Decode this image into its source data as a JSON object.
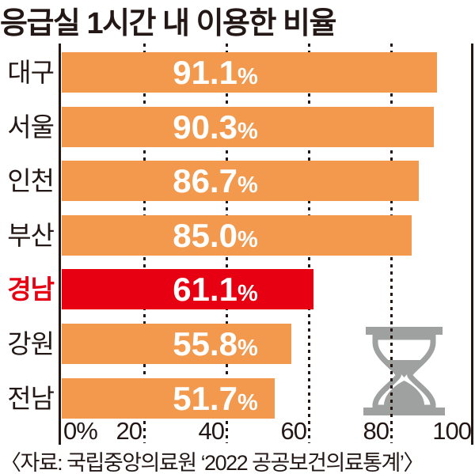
{
  "title": "응급실 1시간 내 이용한 비율",
  "source": "〈자료: 국립중앙의료원 ‘2022 공공보건의료통계’〉",
  "colors": {
    "bar": "#F2994E",
    "highlight": "#E60012",
    "text": "#231815",
    "value_text": "#FFFFFF",
    "icon_gray": "#9FA0A0"
  },
  "chart_data": {
    "type": "bar",
    "orientation": "horizontal",
    "title": "응급실 1시간 내 이용한 비율",
    "categories": [
      "대구",
      "서울",
      "인천",
      "부산",
      "경남",
      "강원",
      "전남"
    ],
    "values": [
      91.1,
      90.3,
      86.7,
      85.0,
      61.1,
      55.8,
      51.7
    ],
    "unit": "%",
    "highlight_index": 4,
    "highlight_category": "경남",
    "xlim": [
      0,
      100
    ],
    "x_ticks": [
      {
        "label": "0%",
        "value": 0
      },
      {
        "label": "20",
        "value": 20
      },
      {
        "label": "40",
        "value": 40
      },
      {
        "label": "60",
        "value": 60
      },
      {
        "label": "80",
        "value": 80
      },
      {
        "label": "100",
        "value": 100
      }
    ],
    "gridline_values": [
      20,
      40,
      60,
      80
    ],
    "grid_style": "dotted-vertical",
    "legend": "none"
  },
  "icons": {
    "hourglass": "hourglass-icon"
  }
}
